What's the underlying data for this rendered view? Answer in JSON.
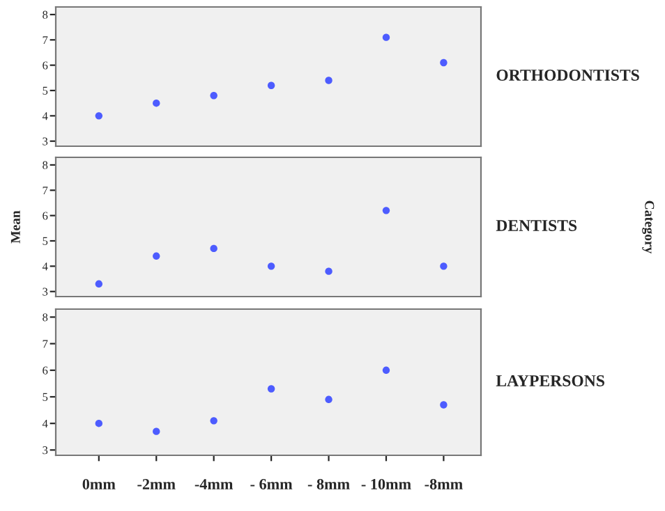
{
  "chart_data": [
    {
      "type": "scatter",
      "categories": [
        null,
        null,
        null,
        null,
        null,
        null,
        null
      ],
      "series": [
        {
          "color": "#4d5cff",
          "values": [
            4.0,
            4.5,
            4.8,
            5.2,
            5.4,
            7.1,
            6.1
          ]
        }
      ],
      "y2label": "ORTHODONTISTS",
      "ylim": [
        2.8,
        8.3
      ],
      "yticks": [
        3,
        4,
        5,
        6,
        7,
        8
      ],
      "tick_labels": "y",
      "grid": false,
      "marker": "circle"
    },
    {
      "type": "scatter",
      "categories": [
        null,
        null,
        null,
        null,
        null,
        null,
        null
      ],
      "series": [
        {
          "color": "#4d5cff",
          "values": [
            3.3,
            4.4,
            4.7,
            4.0,
            3.8,
            6.2,
            4.0
          ]
        }
      ],
      "y2label": "DENTISTS",
      "ylabel": "Mean",
      "annotations": [
        "Category"
      ],
      "ylim": [
        2.8,
        8.3
      ],
      "yticks": [
        3,
        4,
        5,
        6,
        7,
        8
      ],
      "tick_labels": "y",
      "grid": false,
      "marker": "circle"
    },
    {
      "type": "scatter",
      "categories": [
        "0mm",
        "-2mm",
        "-4mm",
        "- 6mm",
        "- 8mm",
        "- 10mm",
        "-8mm"
      ],
      "series": [
        {
          "color": "#4d5cff",
          "values": [
            4.0,
            3.7,
            4.1,
            5.3,
            4.9,
            6.0,
            4.7
          ]
        }
      ],
      "y2label": "LAYPERSONS",
      "ylim": [
        2.8,
        8.3
      ],
      "yticks": [
        3,
        4,
        5,
        6,
        7,
        8
      ],
      "grid": false,
      "marker": "circle"
    }
  ]
}
